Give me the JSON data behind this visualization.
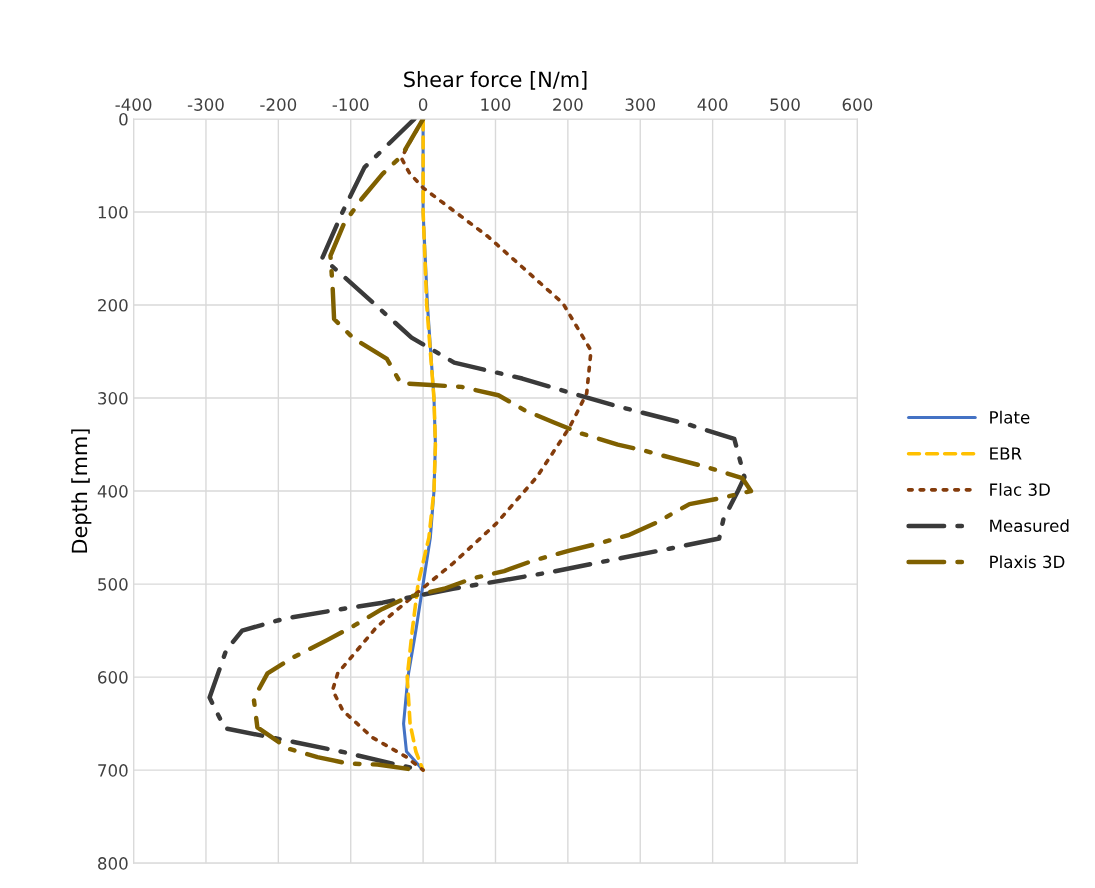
{
  "chart_data": {
    "type": "line",
    "xlabel": "Shear force [N/m]",
    "ylabel": "Depth [mm]",
    "xlim": [
      -400,
      600
    ],
    "xticks": [
      -400,
      -300,
      -200,
      -100,
      0,
      100,
      200,
      300,
      400,
      500,
      600
    ],
    "ylim": [
      800,
      0
    ],
    "yticks": [
      0,
      100,
      200,
      300,
      400,
      500,
      600,
      700,
      800
    ],
    "grid": true,
    "legend": "right",
    "series": [
      {
        "name": "Plate",
        "color": "#4472c4",
        "line_style": "solid",
        "x": [
          0,
          0,
          6,
          15,
          17,
          15,
          10,
          0,
          -10,
          -21,
          -27,
          -23,
          0
        ],
        "values": [
          0,
          100,
          200,
          300,
          350,
          400,
          450,
          500,
          550,
          600,
          650,
          680,
          700
        ]
      },
      {
        "name": "EBR",
        "color": "#ffc000",
        "line_style": "dashed",
        "x": [
          0,
          0,
          5,
          15,
          17,
          15,
          8,
          -7,
          -15,
          -22,
          -18,
          -10,
          0
        ],
        "values": [
          0,
          100,
          200,
          300,
          350,
          400,
          450,
          500,
          550,
          600,
          650,
          680,
          700
        ]
      },
      {
        "name": "Flac 3D",
        "color": "#843c0c",
        "line_style": "dotted",
        "x": [
          0,
          -15,
          -30,
          -19,
          0,
          89,
          193,
          232,
          226,
          202,
          157,
          101,
          41,
          0,
          -64,
          -118,
          -125,
          -111,
          -70,
          -23,
          0
        ],
        "values": [
          0,
          20,
          42,
          58,
          74,
          126,
          198,
          249,
          295,
          332,
          385,
          435,
          478,
          504,
          546,
          596,
          614,
          636,
          665,
          686,
          700
        ]
      },
      {
        "name": "Measured",
        "color": "#3a3a3a",
        "line_style": "dashdot",
        "x": [
          -12,
          -81,
          -112,
          -139,
          -67,
          -16,
          43,
          137,
          202,
          269,
          365,
          430,
          444,
          435,
          415,
          409,
          340,
          274,
          177,
          110,
          41,
          -56,
          -122,
          -191,
          -250,
          -272,
          -295,
          -274,
          -177,
          -108,
          -42,
          -2
        ],
        "values": [
          0,
          52,
          101,
          149,
          199,
          235,
          262,
          279,
          294,
          309,
          328,
          344,
          385,
          400,
          430,
          451,
          462,
          472,
          487,
          496,
          505,
          520,
          528,
          537,
          550,
          571,
          622,
          655,
          670,
          681,
          693,
          700
        ]
      },
      {
        "name": "Plaxis 3D",
        "color": "#7f6000",
        "line_style": "dashdot",
        "x": [
          0,
          -30,
          -56,
          -85,
          -109,
          -128,
          -125,
          -123,
          -96,
          -50,
          -31,
          11,
          53,
          104,
          140,
          180,
          218,
          269,
          308,
          351,
          391,
          441,
          453,
          409,
          368,
          322,
          285,
          244,
          202,
          151,
          112,
          68,
          29,
          -21,
          -57,
          -96,
          -132,
          -180,
          -215,
          -234,
          -229,
          -186,
          -146,
          -103,
          -63,
          -9
        ],
        "values": [
          0,
          40,
          59,
          86,
          112,
          147,
          181,
          215,
          236,
          258,
          284,
          286,
          288,
          297,
          313,
          326,
          338,
          350,
          357,
          366,
          374,
          386,
          400,
          408,
          414,
          434,
          447,
          456,
          464,
          475,
          486,
          494,
          505,
          514,
          527,
          545,
          560,
          579,
          596,
          623,
          654,
          677,
          686,
          693,
          694,
          700
        ]
      }
    ]
  }
}
